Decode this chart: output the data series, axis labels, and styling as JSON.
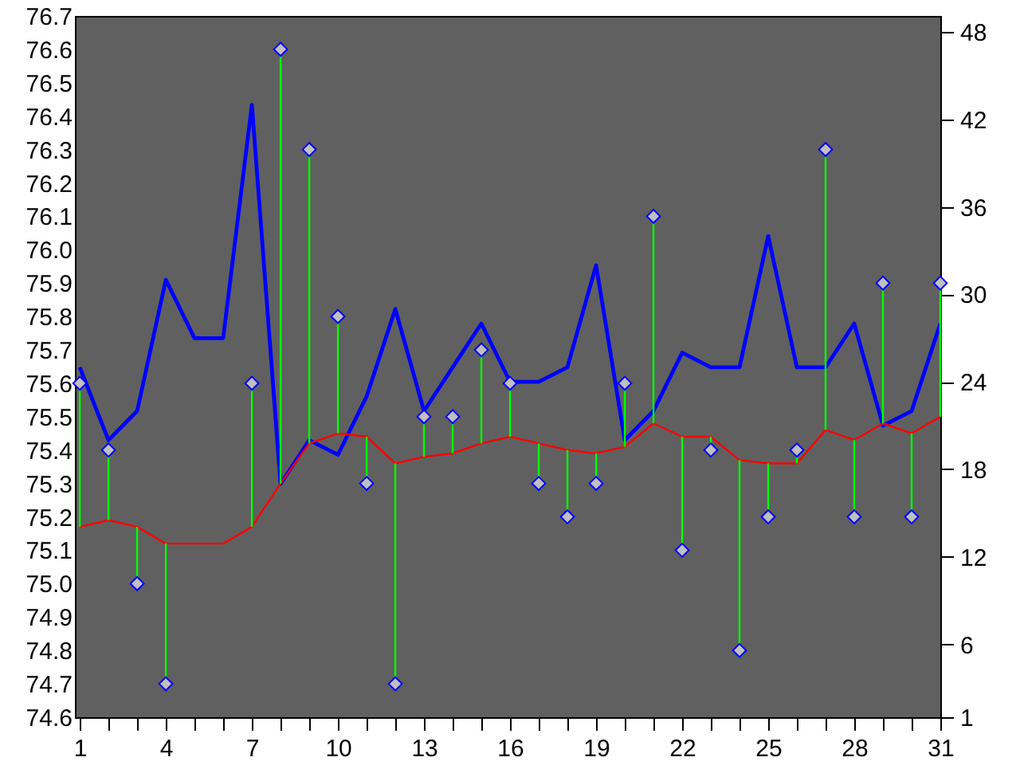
{
  "chart_data": {
    "type": "line",
    "x": [
      1,
      2,
      3,
      4,
      5,
      6,
      7,
      8,
      9,
      10,
      11,
      12,
      13,
      14,
      15,
      16,
      17,
      18,
      19,
      20,
      21,
      22,
      23,
      24,
      25,
      26,
      27,
      28,
      29,
      30,
      31
    ],
    "xlim": [
      0.83,
      31
    ],
    "xticks": [
      1,
      {
        "value": 2,
        "label": null
      },
      {
        "value": 3,
        "label": null
      },
      4,
      {
        "value": 5,
        "label": null
      },
      {
        "value": 6,
        "label": null
      },
      7,
      {
        "value": 8,
        "label": null
      },
      {
        "value": 9,
        "label": null
      },
      10,
      {
        "value": 11,
        "label": null
      },
      {
        "value": 12,
        "label": null
      },
      13,
      {
        "value": 14,
        "label": null
      },
      {
        "value": 15,
        "label": null
      },
      16,
      {
        "value": 17,
        "label": null
      },
      {
        "value": 18,
        "label": null
      },
      19,
      {
        "value": 20,
        "label": null
      },
      {
        "value": 21,
        "label": null
      },
      22,
      {
        "value": 23,
        "label": null
      },
      {
        "value": 24,
        "label": null
      },
      25,
      {
        "value": 26,
        "label": null
      },
      {
        "value": 27,
        "label": null
      },
      28,
      {
        "value": 29,
        "label": null
      },
      {
        "value": 30,
        "label": null
      },
      31
    ],
    "ylim": [
      74.6,
      76.7
    ],
    "yticks": [
      74.6,
      74.7,
      74.8,
      74.9,
      {
        "value": 75,
        "label": "75.0"
      },
      75.1,
      75.2,
      75.3,
      75.4,
      75.5,
      75.6,
      75.7,
      75.8,
      75.9,
      {
        "value": 76,
        "label": "76.0"
      },
      76.1,
      76.2,
      76.3,
      76.4,
      76.5,
      76.6,
      76.7
    ],
    "y2lim": [
      1,
      49.1
    ],
    "y2ticks": [
      1,
      6,
      12,
      18,
      24,
      30,
      36,
      42,
      48
    ],
    "grid": false,
    "series": [
      {
        "type": "line",
        "axis": "y2",
        "color": "#0000ff",
        "values": [
          25,
          20,
          22,
          31,
          27,
          27,
          43,
          17,
          20,
          19,
          23,
          29,
          22,
          25,
          28,
          24,
          24,
          25,
          32,
          20,
          22,
          26,
          25,
          25,
          34,
          25,
          25,
          28,
          21,
          22,
          28
        ]
      },
      {
        "type": "line",
        "color": "#ff0000",
        "values": [
          75.17,
          75.19,
          75.17,
          75.12,
          75.12,
          75.12,
          75.17,
          75.3,
          75.42,
          75.45,
          75.44,
          75.36,
          75.38,
          75.39,
          75.42,
          75.44,
          75.42,
          75.4,
          75.39,
          75.41,
          75.48,
          75.44,
          75.44,
          75.37,
          75.36,
          75.36,
          75.46,
          75.43,
          75.48,
          75.45,
          75.5
        ]
      },
      {
        "type": "scatter",
        "marker": "diamond",
        "color": "#c0c0c0",
        "values": [
          75.6,
          75.4,
          75.0,
          74.7,
          null,
          null,
          75.6,
          76.6,
          76.3,
          75.8,
          75.3,
          74.7,
          75.5,
          75.5,
          75.7,
          75.6,
          75.3,
          75.2,
          75.3,
          75.6,
          76.1,
          75.1,
          75.4,
          74.8,
          75.2,
          75.4,
          76.3,
          75.2,
          75.9,
          75.2,
          75.9
        ],
        "errors": [
          [
            75.17,
            75.6
          ],
          [
            75.19,
            75.4
          ],
          [
            75.0,
            75.17
          ],
          [
            74.7,
            75.12
          ],
          null,
          null,
          [
            75.17,
            75.6
          ],
          [
            75.3,
            76.6
          ],
          [
            75.42,
            76.3
          ],
          [
            75.45,
            75.8
          ],
          [
            75.3,
            75.44
          ],
          [
            74.7,
            75.36
          ],
          [
            75.38,
            75.5
          ],
          [
            75.39,
            75.5
          ],
          [
            75.42,
            75.7
          ],
          [
            75.44,
            75.6
          ],
          [
            75.3,
            75.42
          ],
          [
            75.2,
            75.4
          ],
          [
            75.3,
            75.39
          ],
          [
            75.41,
            75.6
          ],
          [
            75.48,
            76.1
          ],
          [
            75.1,
            75.44
          ],
          [
            75.4,
            75.44
          ],
          [
            74.8,
            75.37
          ],
          [
            75.2,
            75.36
          ],
          [
            75.36,
            75.4
          ],
          [
            75.46,
            76.3
          ],
          [
            75.2,
            75.43
          ],
          [
            75.48,
            75.9
          ],
          [
            75.2,
            75.45
          ],
          [
            75.5,
            75.9
          ]
        ]
      }
    ]
  }
}
